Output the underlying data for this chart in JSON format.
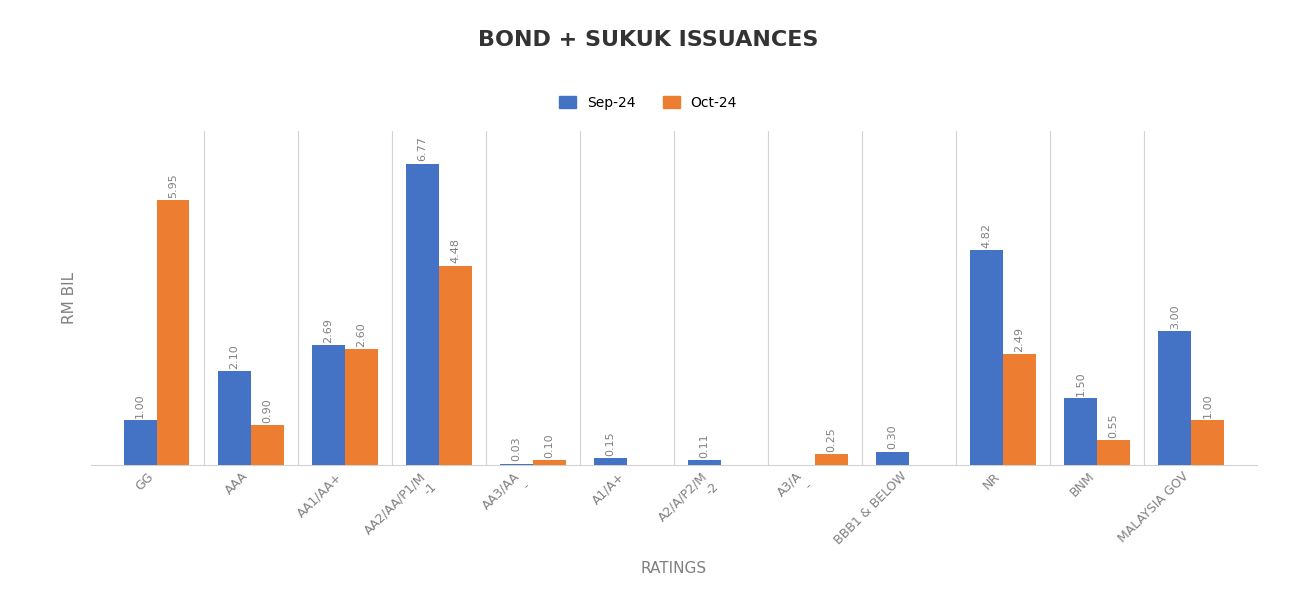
{
  "title": "BOND + SUKUK ISSUANCES",
  "xlabel": "RATINGS",
  "ylabel": "RM BIL",
  "categories": [
    "GG",
    "AAA",
    "AA1/AA+",
    "AA2/AA/P1/M\n-1",
    "AA3/AA\n-",
    "A1/A+",
    "A2/A/P2/M\n-2",
    "A3/A\n-",
    "BBB1 & BELOW",
    "NR",
    "BNM",
    "MALAYSIA GOV"
  ],
  "sep24": [
    1.0,
    2.1,
    2.69,
    6.77,
    0.03,
    0.15,
    0.11,
    0.0,
    0.3,
    4.82,
    1.5,
    3.0
  ],
  "oct24": [
    5.95,
    0.9,
    2.6,
    4.48,
    0.1,
    0.0,
    0.0,
    0.25,
    0.0,
    2.49,
    0.55,
    1.0
  ],
  "sep24_labels": [
    "1.00",
    "2.10",
    "2.69",
    "6.77",
    "0.03",
    "0.15",
    "0.11",
    "",
    "0.30",
    "4.82",
    "1.50",
    "3.00"
  ],
  "oct24_labels": [
    "5.95",
    "0.90",
    "2.60",
    "4.48",
    "0.10",
    "",
    "",
    "0.25",
    "",
    "2.49",
    "0.55",
    "1.00"
  ],
  "color_sep": "#4472C4",
  "color_oct": "#ED7D31",
  "background": "#FFFFFF",
  "ylim": [
    0,
    7.5
  ],
  "bar_width": 0.35,
  "legend_labels": [
    "Sep-24",
    "Oct-24"
  ]
}
